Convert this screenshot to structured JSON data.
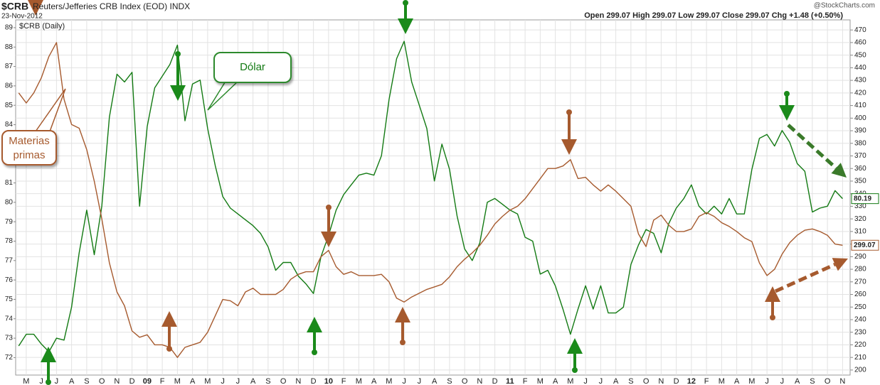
{
  "chart_data": {
    "type": "line",
    "title": "$CRB",
    "subtitle": "Reuters/Jefferies CRB Index (EOD) INDX",
    "date": "23-Nov-2012",
    "source": "@StockCharts.com",
    "quote": "Open 299.07  High 299.07  Low 299.07  Close 299.07  Chg +1.48 (+0.50%)",
    "panel_label": "$CRB (Daily)",
    "grid": true,
    "xlim": [
      -0.7,
      54.5
    ],
    "xticks": [
      {
        "value": 0,
        "label": "M"
      },
      {
        "value": 1,
        "label": "J"
      },
      {
        "value": 2,
        "label": "J"
      },
      {
        "value": 3,
        "label": "A"
      },
      {
        "value": 4,
        "label": "S"
      },
      {
        "value": 5,
        "label": "O"
      },
      {
        "value": 6,
        "label": "N"
      },
      {
        "value": 7,
        "label": "D"
      },
      {
        "value": 8,
        "label": "09"
      },
      {
        "value": 9,
        "label": "F"
      },
      {
        "value": 10,
        "label": "M"
      },
      {
        "value": 11,
        "label": "A"
      },
      {
        "value": 12,
        "label": "M"
      },
      {
        "value": 13,
        "label": "J"
      },
      {
        "value": 14,
        "label": "J"
      },
      {
        "value": 15,
        "label": "A"
      },
      {
        "value": 16,
        "label": "S"
      },
      {
        "value": 17,
        "label": "O"
      },
      {
        "value": 18,
        "label": "N"
      },
      {
        "value": 19,
        "label": "D"
      },
      {
        "value": 20,
        "label": "10"
      },
      {
        "value": 21,
        "label": "F"
      },
      {
        "value": 22,
        "label": "M"
      },
      {
        "value": 23,
        "label": "A"
      },
      {
        "value": 24,
        "label": "M"
      },
      {
        "value": 25,
        "label": "J"
      },
      {
        "value": 26,
        "label": "J"
      },
      {
        "value": 27,
        "label": "A"
      },
      {
        "value": 28,
        "label": "S"
      },
      {
        "value": 29,
        "label": "O"
      },
      {
        "value": 30,
        "label": "N"
      },
      {
        "value": 31,
        "label": "D"
      },
      {
        "value": 32,
        "label": "11"
      },
      {
        "value": 33,
        "label": "F"
      },
      {
        "value": 34,
        "label": "M"
      },
      {
        "value": 35,
        "label": "A"
      },
      {
        "value": 36,
        "label": "M"
      },
      {
        "value": 37,
        "label": "J"
      },
      {
        "value": 38,
        "label": "J"
      },
      {
        "value": 39,
        "label": "A"
      },
      {
        "value": 40,
        "label": "S"
      },
      {
        "value": 41,
        "label": "O"
      },
      {
        "value": 42,
        "label": "N"
      },
      {
        "value": 43,
        "label": "D"
      },
      {
        "value": 44,
        "label": "12"
      },
      {
        "value": 45,
        "label": "F"
      },
      {
        "value": 46,
        "label": "M"
      },
      {
        "value": 47,
        "label": "A"
      },
      {
        "value": 48,
        "label": "M"
      },
      {
        "value": 49,
        "label": "J"
      },
      {
        "value": 50,
        "label": "J"
      },
      {
        "value": 51,
        "label": "A"
      },
      {
        "value": 52,
        "label": "S"
      },
      {
        "value": 53,
        "label": "O"
      },
      {
        "value": 54,
        "label": "N"
      }
    ],
    "ylim": [
      71.1,
      89.4
    ],
    "yticks": [
      72,
      73,
      74,
      75,
      76,
      77,
      78,
      79,
      80,
      81,
      84,
      85,
      86,
      87,
      88,
      89
    ],
    "y2lim": [
      196,
      478
    ],
    "y2ticks": [
      200,
      210,
      220,
      230,
      240,
      250,
      260,
      270,
      280,
      290,
      300,
      310,
      320,
      330,
      340,
      350,
      360,
      370,
      380,
      390,
      400,
      410,
      420,
      430,
      440,
      450,
      460,
      470
    ],
    "x": [
      -0.5,
      0,
      0.5,
      1,
      1.5,
      2,
      2.5,
      3,
      3.5,
      4,
      4.5,
      5,
      5.5,
      6,
      6.5,
      7,
      7.5,
      8,
      8.5,
      9,
      9.5,
      10,
      10.5,
      11,
      11.5,
      12,
      12.5,
      13,
      13.5,
      14,
      14.5,
      15,
      15.5,
      16,
      16.5,
      17,
      17.5,
      18,
      18.5,
      19,
      19.5,
      20,
      20.5,
      21,
      21.5,
      22,
      22.5,
      23,
      23.5,
      24,
      24.5,
      25,
      25.5,
      26,
      26.5,
      27,
      27.5,
      28,
      28.5,
      29,
      29.5,
      30,
      30.5,
      31,
      31.5,
      32,
      32.5,
      33,
      33.5,
      34,
      34.5,
      35,
      35.5,
      36,
      36.5,
      37,
      37.5,
      38,
      38.5,
      39,
      39.5,
      40,
      40.5,
      41,
      41.5,
      42,
      42.5,
      43,
      43.5,
      44,
      44.5,
      45,
      45.5,
      46,
      46.5,
      47,
      47.5,
      48,
      48.5,
      49,
      49.5,
      50,
      50.5,
      51,
      51.5,
      52,
      52.5,
      53,
      53.5,
      54
    ],
    "series": [
      {
        "name": "Dólar",
        "color": "#137a13",
        "axis": "y",
        "values": [
          72.6,
          73.2,
          73.2,
          72.7,
          72.3,
          73,
          72.9,
          74.6,
          77.4,
          79.6,
          77.3,
          79.8,
          84.4,
          86.6,
          86.2,
          86.7,
          79.8,
          83.9,
          85.9,
          86.5,
          87.1,
          88.1,
          84.2,
          86.1,
          86.3,
          83.8,
          81.9,
          80.3,
          79.7,
          79.4,
          79.1,
          78.8,
          78.4,
          77.7,
          76.5,
          76.9,
          76.9,
          76.2,
          75.8,
          75.3,
          77.2,
          78.3,
          79.6,
          80.4,
          80.9,
          81.4,
          81.5,
          81.4,
          82.4,
          85.3,
          87.4,
          88.3,
          86.2,
          85,
          83.8,
          81.1,
          83,
          81.7,
          79.3,
          77.6,
          77,
          77.9,
          80,
          80.2,
          79.9,
          79.6,
          79.4,
          78.2,
          78,
          76.3,
          76.5,
          75.7,
          74.5,
          73.2,
          74.5,
          75.7,
          74.5,
          75.7,
          74.3,
          74.3,
          74.6,
          76.8,
          77.8,
          78.6,
          78.4,
          77.4,
          78.9,
          79.7,
          80.2,
          80.9,
          79.8,
          79.4,
          79.8,
          79.4,
          80.2,
          79.4,
          79.4,
          81.7,
          83.3,
          83.5,
          82.9,
          83.7,
          83.1,
          82,
          81.6,
          79.5,
          79.7,
          79.8,
          80.6,
          80.19
        ]
      },
      {
        "name": "Materias primas",
        "color": "#a65a2e",
        "axis": "y2",
        "values": [
          420,
          412,
          420,
          432,
          449,
          460,
          415,
          395,
          392,
          375,
          350,
          320,
          285,
          262,
          251,
          231,
          226,
          228,
          220,
          220,
          218,
          210,
          218,
          220,
          222,
          230,
          243,
          256,
          255,
          251,
          262,
          265,
          260,
          260,
          260,
          264,
          272,
          276,
          278,
          278,
          290,
          295,
          282,
          276,
          278,
          275,
          275,
          275,
          276,
          270,
          257,
          254,
          258,
          261,
          264,
          266,
          268,
          274,
          282,
          288,
          293,
          299,
          307,
          316,
          322,
          327,
          330,
          336,
          344,
          352,
          360,
          360,
          362,
          367,
          352,
          353,
          347,
          342,
          347,
          342,
          336,
          330,
          308,
          298,
          319,
          323,
          315,
          310,
          310,
          312,
          322,
          325,
          322,
          317,
          314,
          310,
          305,
          302,
          285,
          275,
          280,
          292,
          301,
          307,
          311,
          312,
          310,
          307,
          300,
          299.07
        ]
      }
    ]
  }
}
